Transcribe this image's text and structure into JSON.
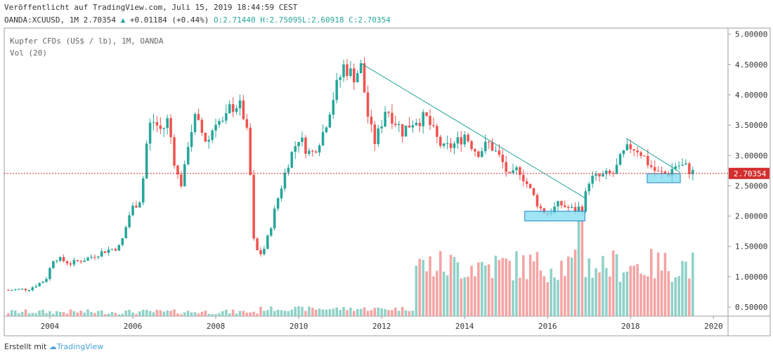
{
  "header": {
    "published": "Veröffentlicht auf TradingView.com, Juli 15, 2019 18:44:59 CEST",
    "symbol": "OANDA:XCUUSD, 1M",
    "price": "2.70354",
    "change": "+0.01184 (+0.44%)",
    "o_label": "O:",
    "o_value": "2.71440",
    "h_label": "H:",
    "h_value": "2.75095",
    "l_label": "L:",
    "l_value": "2.60918",
    "c_label": "C:",
    "c_value": "2.70354"
  },
  "legend": {
    "title": "Kupfer CFDs (US$ / lb), 1M, OANDA",
    "volume": "Vol (20)"
  },
  "footer": {
    "made_with": "Erstellt mit",
    "brand": "TradingView"
  },
  "colors": {
    "up": "#26a69a",
    "down": "#ef5350",
    "vol_up": "#8fd1c7",
    "vol_down": "#f5a3a3",
    "price_line": "#d32f2f",
    "trend": "#26a69a",
    "box": "#7fdcf0"
  },
  "chart_data": {
    "type": "candlestick",
    "title": "Kupfer CFDs (US$ / lb), 1M, OANDA",
    "ylim": [
      0.35,
      5.1
    ],
    "y_ticks": [
      "5.00000",
      "4.50000",
      "4.00000",
      "3.50000",
      "3.00000",
      "2.50000",
      "2.00000",
      "1.50000",
      "1.00000",
      "0.50000"
    ],
    "x_ticks": [
      "2004",
      "2006",
      "2008",
      "2010",
      "2012",
      "2014",
      "2016",
      "2018",
      "2020"
    ],
    "x_range": [
      2002.9,
      2020.35
    ],
    "last_price": 2.70354,
    "last_price_label": "2.70354",
    "anchors": [
      [
        2003.0,
        0.78
      ],
      [
        2003.5,
        0.8
      ],
      [
        2003.9,
        0.95
      ],
      [
        2004.1,
        1.32
      ],
      [
        2004.5,
        1.22
      ],
      [
        2004.9,
        1.3
      ],
      [
        2005.3,
        1.42
      ],
      [
        2005.7,
        1.5
      ],
      [
        2005.95,
        2.1
      ],
      [
        2006.2,
        2.3
      ],
      [
        2006.35,
        3.3
      ],
      [
        2006.45,
        3.6
      ],
      [
        2006.7,
        3.4
      ],
      [
        2006.85,
        3.6
      ],
      [
        2007.05,
        2.7
      ],
      [
        2007.2,
        2.5
      ],
      [
        2007.35,
        3.3
      ],
      [
        2007.5,
        3.6
      ],
      [
        2007.8,
        3.2
      ],
      [
        2008.0,
        3.6
      ],
      [
        2008.2,
        3.5
      ],
      [
        2008.35,
        3.8
      ],
      [
        2008.55,
        3.85
      ],
      [
        2008.7,
        3.6
      ],
      [
        2008.8,
        3.1
      ],
      [
        2008.92,
        1.55
      ],
      [
        2009.05,
        1.35
      ],
      [
        2009.2,
        1.5
      ],
      [
        2009.5,
        2.3
      ],
      [
        2009.75,
        2.9
      ],
      [
        2010.0,
        3.3
      ],
      [
        2010.3,
        3.0
      ],
      [
        2010.6,
        3.4
      ],
      [
        2010.8,
        3.9
      ],
      [
        2011.0,
        4.3
      ],
      [
        2011.1,
        4.5
      ],
      [
        2011.3,
        4.3
      ],
      [
        2011.5,
        4.45
      ],
      [
        2011.7,
        3.5
      ],
      [
        2011.85,
        3.2
      ],
      [
        2012.1,
        3.8
      ],
      [
        2012.3,
        3.6
      ],
      [
        2012.5,
        3.4
      ],
      [
        2012.8,
        3.6
      ],
      [
        2013.1,
        3.6
      ],
      [
        2013.3,
        3.3
      ],
      [
        2013.5,
        3.1
      ],
      [
        2013.8,
        3.2
      ],
      [
        2014.0,
        3.35
      ],
      [
        2014.3,
        3.05
      ],
      [
        2014.6,
        3.2
      ],
      [
        2014.9,
        2.9
      ],
      [
        2015.1,
        2.6
      ],
      [
        2015.3,
        2.8
      ],
      [
        2015.6,
        2.4
      ],
      [
        2015.85,
        2.1
      ],
      [
        2016.0,
        2.05
      ],
      [
        2016.3,
        2.2
      ],
      [
        2016.6,
        2.1
      ],
      [
        2016.85,
        2.15
      ],
      [
        2017.0,
        2.6
      ],
      [
        2017.3,
        2.65
      ],
      [
        2017.6,
        2.7
      ],
      [
        2017.8,
        3.0
      ],
      [
        2018.0,
        3.15
      ],
      [
        2018.2,
        3.1
      ],
      [
        2018.45,
        2.85
      ],
      [
        2018.65,
        2.7
      ],
      [
        2018.9,
        2.7
      ],
      [
        2019.1,
        2.85
      ],
      [
        2019.35,
        2.8
      ],
      [
        2019.53,
        2.7
      ]
    ],
    "volume_ylim": [
      0,
      1.6
    ],
    "volume_ticks": [
      "1.50000",
      "1.00000",
      "0.50000"
    ]
  }
}
